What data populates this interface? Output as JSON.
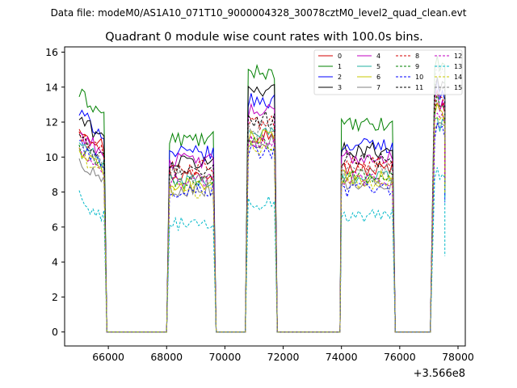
{
  "figure": {
    "supertitle": "Data file: modeM0/AS1A10_071T10_9000004328_30078cztM0_level2_quad_clean.evt"
  },
  "chart_data": {
    "type": "line",
    "title": "Quadrant 0 module wise count rates with 100.0s bins.",
    "xlabel": "",
    "ylabel": "",
    "x_offset_label": "+3.566e8",
    "xlim": [
      64500,
      78250
    ],
    "ylim": [
      -0.8,
      16.3
    ],
    "x_ticks": [
      66000,
      68000,
      70000,
      72000,
      74000,
      76000,
      78000
    ],
    "x_tick_labels": [
      "66000",
      "68000",
      "70000",
      "72000",
      "74000",
      "76000",
      "78000"
    ],
    "y_ticks": [
      0,
      2,
      4,
      6,
      8,
      10,
      12,
      14,
      16
    ],
    "y_tick_labels": [
      "0",
      "2",
      "4",
      "6",
      "8",
      "10",
      "12",
      "14",
      "16"
    ],
    "grid": false,
    "legend": {
      "placement": "top-right",
      "columns": 4
    },
    "segments": [
      {
        "start": 65000,
        "end": 65850,
        "drop_to": 65950
      },
      {
        "start": 68100,
        "end": 69600,
        "drop_to": 69700
      },
      {
        "start": 70800,
        "end": 71700,
        "drop_to": 71800
      },
      {
        "start": 74000,
        "end": 75750,
        "drop_to": 75850
      },
      {
        "start": 77200,
        "end": 77550,
        "drop_to": 77550
      }
    ],
    "gap_rises": [
      68000,
      70700,
      73950,
      77050
    ],
    "series": [
      {
        "name": "0",
        "color": "#d40000",
        "dash": "solid",
        "levels": [
          10.6,
          9.0,
          11.3,
          9.3,
          12.9
        ]
      },
      {
        "name": "1",
        "color": "#008000",
        "dash": "solid",
        "levels": [
          12.4,
          11.0,
          14.9,
          11.8,
          15.2
        ]
      },
      {
        "name": "2",
        "color": "#0000ff",
        "dash": "solid",
        "levels": [
          11.3,
          10.2,
          13.2,
          10.7,
          13.6
        ]
      },
      {
        "name": "3",
        "color": "#000000",
        "dash": "solid",
        "levels": [
          11.0,
          9.7,
          13.9,
          10.4,
          14.1
        ]
      },
      {
        "name": "4",
        "color": "#c000c0",
        "dash": "solid",
        "levels": [
          10.2,
          9.8,
          12.6,
          10.0,
          13.0
        ]
      },
      {
        "name": "5",
        "color": "#20b0a0",
        "dash": "solid",
        "levels": [
          9.6,
          8.6,
          11.4,
          8.9,
          11.9
        ]
      },
      {
        "name": "6",
        "color": "#c8c800",
        "dash": "solid",
        "levels": [
          9.1,
          8.4,
          11.1,
          8.8,
          12.3
        ]
      },
      {
        "name": "7",
        "color": "#808080",
        "dash": "solid",
        "levels": [
          8.6,
          8.2,
          10.9,
          8.6,
          11.6
        ]
      },
      {
        "name": "8",
        "color": "#d40000",
        "dash": "dashed",
        "levels": [
          10.1,
          9.4,
          11.9,
          9.6,
          13.1
        ]
      },
      {
        "name": "9",
        "color": "#008000",
        "dash": "dashed",
        "levels": [
          9.3,
          8.7,
          10.8,
          8.9,
          12.6
        ]
      },
      {
        "name": "10",
        "color": "#0000ff",
        "dash": "dashed",
        "levels": [
          9.5,
          8.1,
          10.3,
          8.1,
          11.4
        ]
      },
      {
        "name": "11",
        "color": "#000000",
        "dash": "dashed",
        "levels": [
          9.8,
          9.3,
          12.2,
          9.8,
          13.6
        ]
      },
      {
        "name": "12",
        "color": "#c000c0",
        "dash": "dashed",
        "levels": [
          9.0,
          8.6,
          10.9,
          8.8,
          12.1
        ]
      },
      {
        "name": "13",
        "color": "#00b8c8",
        "dash": "dashed",
        "levels": [
          6.5,
          6.1,
          7.4,
          6.6,
          8.6
        ]
      },
      {
        "name": "14",
        "color": "#c8c800",
        "dash": "dashed",
        "levels": [
          8.9,
          8.1,
          10.6,
          8.5,
          12.0
        ]
      },
      {
        "name": "15",
        "color": "#808080",
        "dash": "dashed",
        "levels": [
          9.6,
          9.0,
          11.6,
          9.3,
          14.6
        ]
      }
    ]
  }
}
